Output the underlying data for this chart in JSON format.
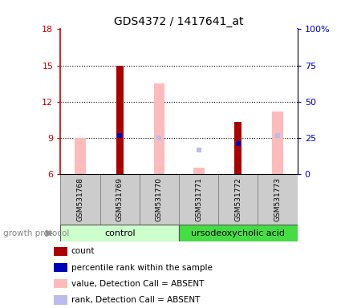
{
  "title": "GDS4372 / 1417641_at",
  "samples": [
    "GSM531768",
    "GSM531769",
    "GSM531770",
    "GSM531771",
    "GSM531772",
    "GSM531773"
  ],
  "ylim_left": [
    6,
    18
  ],
  "ylim_right": [
    0,
    100
  ],
  "yticks_left": [
    6,
    9,
    12,
    15,
    18
  ],
  "yticks_right": [
    0,
    25,
    50,
    75,
    100
  ],
  "yticklabels_right": [
    "0",
    "25",
    "50",
    "75",
    "100%"
  ],
  "left_axis_color": "#cc0000",
  "right_axis_color": "#0000cc",
  "count_color": "#aa0000",
  "percentile_color": "#0000bb",
  "value_absent_color": "#ffbbbb",
  "rank_absent_color": "#bbbbee",
  "count_values": [
    null,
    15.0,
    null,
    null,
    10.3,
    null
  ],
  "percentile_values": [
    null,
    9.2,
    null,
    null,
    8.5,
    null
  ],
  "value_absent": [
    9.0,
    null,
    13.5,
    6.5,
    null,
    11.2
  ],
  "rank_absent": [
    null,
    null,
    9.0,
    8.0,
    null,
    9.2
  ],
  "legend_items": [
    {
      "label": "count",
      "color": "#aa0000"
    },
    {
      "label": "percentile rank within the sample",
      "color": "#0000bb"
    },
    {
      "label": "value, Detection Call = ABSENT",
      "color": "#ffbbbb"
    },
    {
      "label": "rank, Detection Call = ABSENT",
      "color": "#bbbbee"
    }
  ],
  "control_color": "#ccffcc",
  "urso_color": "#44dd44",
  "sample_box_color": "#cccccc",
  "background_color": "#ffffff",
  "plot_bg": "#ffffff"
}
